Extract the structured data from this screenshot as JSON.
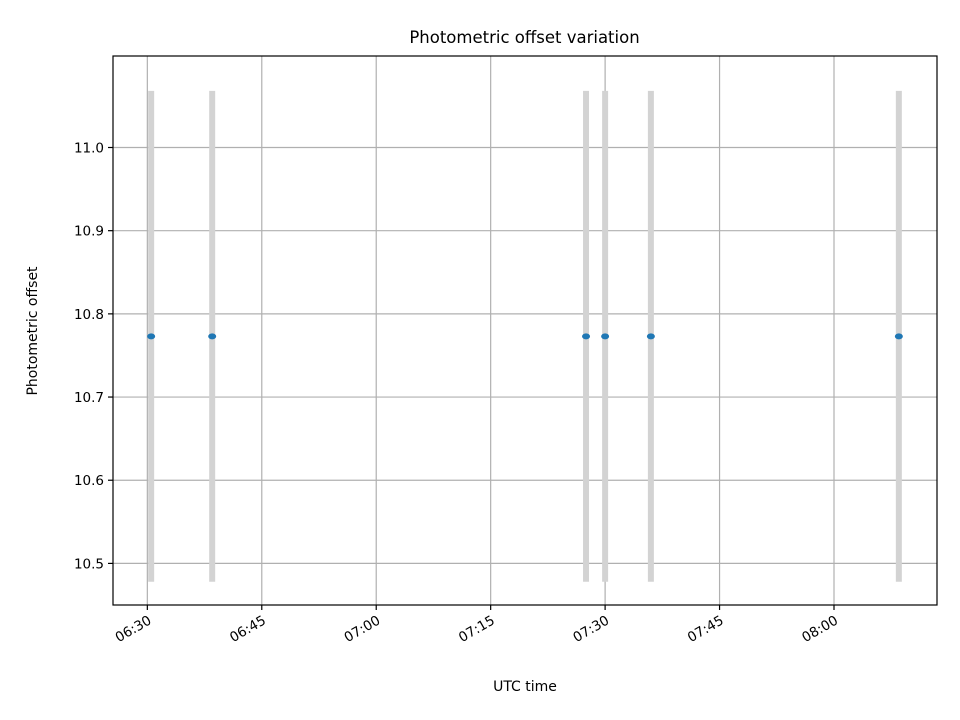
{
  "chart_data": {
    "type": "scatter",
    "title": "Photometric offset variation",
    "xlabel": "UTC time",
    "ylabel": "Photometric offset",
    "x_ticks": [
      "06:30",
      "06:45",
      "07:00",
      "07:15",
      "07:30",
      "07:45",
      "08:00"
    ],
    "y_ticks": [
      "10.5",
      "10.6",
      "10.7",
      "10.8",
      "10.9",
      "11.0"
    ],
    "xlim": [
      "06:25:30",
      "08:13:30"
    ],
    "ylim": [
      10.45,
      11.11
    ],
    "grid": true,
    "error_bar_color": "#d3d3d3",
    "point_color": "#1f77b4",
    "points": [
      {
        "time": "06:30:30",
        "y": 10.773,
        "y_low": 10.478,
        "y_high": 11.068
      },
      {
        "time": "06:38:30",
        "y": 10.773,
        "y_low": 10.478,
        "y_high": 11.068
      },
      {
        "time": "07:27:30",
        "y": 10.773,
        "y_low": 10.478,
        "y_high": 11.068
      },
      {
        "time": "07:30:00",
        "y": 10.773,
        "y_low": 10.478,
        "y_high": 11.068
      },
      {
        "time": "07:36:00",
        "y": 10.773,
        "y_low": 10.478,
        "y_high": 11.068
      },
      {
        "time": "08:08:30",
        "y": 10.773,
        "y_low": 10.478,
        "y_high": 11.068
      }
    ]
  }
}
